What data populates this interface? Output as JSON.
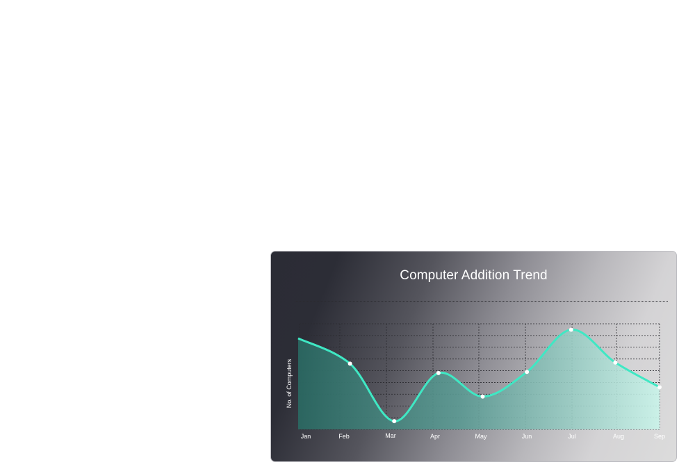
{
  "chart_data": {
    "type": "area",
    "title": "Computer Addition Trend",
    "xlabel": "",
    "ylabel": "No. of Computers",
    "categories": [
      "Jan",
      "Feb",
      "Mar",
      "Apr",
      "May",
      "Jun",
      "Jul",
      "Aug",
      "Sep"
    ],
    "series": [
      {
        "values": [
          82,
          61,
          12,
          53,
          33,
          54,
          90,
          62,
          41
        ]
      }
    ],
    "ylim": [
      5,
      95
    ],
    "grid": true,
    "legend": "none",
    "colors": {
      "line": "#3fe8c4",
      "fill_start": "#2a6a63",
      "fill_end": "#c9f3e9",
      "marker": "#ffffff",
      "grid": "#2a2a2f"
    }
  }
}
